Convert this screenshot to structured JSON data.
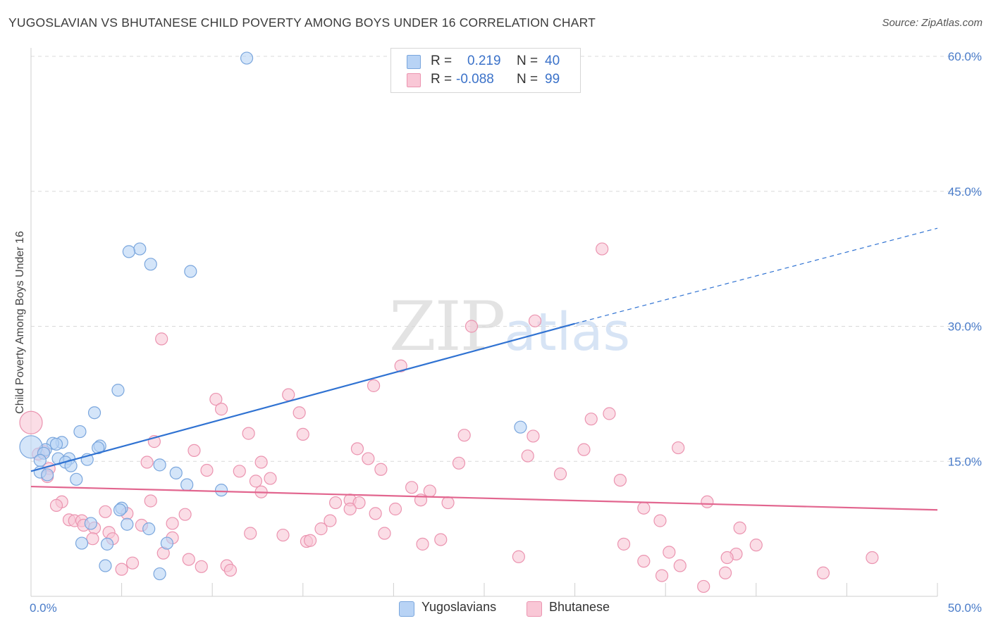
{
  "title": "YUGOSLAVIAN VS BHUTANESE CHILD POVERTY AMONG BOYS UNDER 16 CORRELATION CHART",
  "source": "Source: ZipAtlas.com",
  "watermark": {
    "part1": "ZIP",
    "part2": "atlas"
  },
  "stats": [
    {
      "r_label": "R =",
      "r_value": "0.219",
      "n_label": "N =",
      "n_value": "40",
      "color": "#b8d3f5"
    },
    {
      "r_label": "R =",
      "r_value": "-0.088",
      "n_label": "N =",
      "n_value": "99",
      "color": "#f9c7d6"
    }
  ],
  "legend": [
    {
      "label": "Yugoslavians",
      "color": "#b8d3f5"
    },
    {
      "label": "Bhutanese",
      "color": "#f9c7d6"
    }
  ],
  "colors": {
    "blue_point_fill": "#b8d3f5",
    "blue_point_stroke": "#7aa6dd",
    "blue_line": "#2f72d2",
    "pink_point_fill": "#f9c7d6",
    "pink_point_stroke": "#eb94b0",
    "pink_line": "#e2668f",
    "grid": "#d9d9d9",
    "tick_text": "#4a7cc9"
  },
  "chart_data": {
    "type": "scatter",
    "title": "YUGOSLAVIAN VS BHUTANESE CHILD POVERTY AMONG BOYS UNDER 16 CORRELATION CHART",
    "xlabel": "",
    "ylabel": "Child Poverty Among Boys Under 16",
    "xlim": [
      0,
      50
    ],
    "ylim": [
      0,
      60
    ],
    "x_tick_labels": [
      "0.0%",
      "50.0%"
    ],
    "y_ticks": [
      15,
      30,
      45,
      60
    ],
    "y_tick_labels": [
      "15.0%",
      "30.0%",
      "45.0%",
      "60.0%"
    ],
    "grid": true,
    "legend_position": "bottom-center",
    "series": [
      {
        "name": "Yugoslavians",
        "R": 0.219,
        "N": 40,
        "trend": {
          "x0": 0,
          "y0": 13.9,
          "x1": 30,
          "y1": 30.3,
          "dashed_to_x": 50,
          "dashed_to_y": 40.9
        },
        "points": [
          [
            11.9,
            59.8
          ],
          [
            6.0,
            38.6
          ],
          [
            5.4,
            38.3
          ],
          [
            6.6,
            36.9
          ],
          [
            8.8,
            36.1
          ],
          [
            4.8,
            22.9
          ],
          [
            3.5,
            20.4
          ],
          [
            27.0,
            18.8
          ],
          [
            2.7,
            18.3
          ],
          [
            1.7,
            17.1
          ],
          [
            1.2,
            17.0
          ],
          [
            1.4,
            16.9
          ],
          [
            3.8,
            16.7
          ],
          [
            3.7,
            16.5
          ],
          [
            0.8,
            16.3
          ],
          [
            0.0,
            16.6
          ],
          [
            0.7,
            15.9
          ],
          [
            1.5,
            15.3
          ],
          [
            2.1,
            15.3
          ],
          [
            3.1,
            15.2
          ],
          [
            0.5,
            15.1
          ],
          [
            1.9,
            14.9
          ],
          [
            2.2,
            14.5
          ],
          [
            7.1,
            14.6
          ],
          [
            0.5,
            13.8
          ],
          [
            0.9,
            13.5
          ],
          [
            8.0,
            13.7
          ],
          [
            2.5,
            13.0
          ],
          [
            8.6,
            12.4
          ],
          [
            10.5,
            11.8
          ],
          [
            5.0,
            9.8
          ],
          [
            4.9,
            9.6
          ],
          [
            5.3,
            8.0
          ],
          [
            6.5,
            7.5
          ],
          [
            3.3,
            8.1
          ],
          [
            2.8,
            5.9
          ],
          [
            4.2,
            5.8
          ],
          [
            7.5,
            5.9
          ],
          [
            4.1,
            3.4
          ],
          [
            7.1,
            2.5
          ]
        ]
      },
      {
        "name": "Bhutanese",
        "R": -0.088,
        "N": 99,
        "trend": {
          "x0": 0,
          "y0": 12.2,
          "x1": 50,
          "y1": 9.6
        },
        "points": [
          [
            31.5,
            38.6
          ],
          [
            27.8,
            30.6
          ],
          [
            24.3,
            30.0
          ],
          [
            7.2,
            28.6
          ],
          [
            20.4,
            25.6
          ],
          [
            18.9,
            23.4
          ],
          [
            14.2,
            22.4
          ],
          [
            10.2,
            21.9
          ],
          [
            10.5,
            20.8
          ],
          [
            14.8,
            20.4
          ],
          [
            31.9,
            20.3
          ],
          [
            30.9,
            19.7
          ],
          [
            0.0,
            19.3
          ],
          [
            12.0,
            18.1
          ],
          [
            15.0,
            18.0
          ],
          [
            23.9,
            17.9
          ],
          [
            27.7,
            17.8
          ],
          [
            6.8,
            17.2
          ],
          [
            35.7,
            16.5
          ],
          [
            18.0,
            16.4
          ],
          [
            30.5,
            16.3
          ],
          [
            9.0,
            16.2
          ],
          [
            0.7,
            16.1
          ],
          [
            0.4,
            15.8
          ],
          [
            27.4,
            15.6
          ],
          [
            18.6,
            15.3
          ],
          [
            6.4,
            14.9
          ],
          [
            12.7,
            14.9
          ],
          [
            23.6,
            14.8
          ],
          [
            1.0,
            14.2
          ],
          [
            9.7,
            14.0
          ],
          [
            19.3,
            14.1
          ],
          [
            11.5,
            13.9
          ],
          [
            29.2,
            13.6
          ],
          [
            0.9,
            13.3
          ],
          [
            13.2,
            13.1
          ],
          [
            12.4,
            12.8
          ],
          [
            32.5,
            12.9
          ],
          [
            21.0,
            12.1
          ],
          [
            22.0,
            11.7
          ],
          [
            12.7,
            11.6
          ],
          [
            21.5,
            10.7
          ],
          [
            17.6,
            10.7
          ],
          [
            1.7,
            10.5
          ],
          [
            6.6,
            10.6
          ],
          [
            16.8,
            10.4
          ],
          [
            18.1,
            10.4
          ],
          [
            23.0,
            10.4
          ],
          [
            37.3,
            10.5
          ],
          [
            1.4,
            10.1
          ],
          [
            17.6,
            9.7
          ],
          [
            20.1,
            9.7
          ],
          [
            33.8,
            9.8
          ],
          [
            4.1,
            9.4
          ],
          [
            5.3,
            9.2
          ],
          [
            8.5,
            9.1
          ],
          [
            19.0,
            9.2
          ],
          [
            2.1,
            8.5
          ],
          [
            2.4,
            8.4
          ],
          [
            2.8,
            8.4
          ],
          [
            7.8,
            8.1
          ],
          [
            2.9,
            7.9
          ],
          [
            6.1,
            7.9
          ],
          [
            16.5,
            8.4
          ],
          [
            34.7,
            8.4
          ],
          [
            3.5,
            7.6
          ],
          [
            4.3,
            7.1
          ],
          [
            16.0,
            7.5
          ],
          [
            39.1,
            7.6
          ],
          [
            12.1,
            7.0
          ],
          [
            19.5,
            7.0
          ],
          [
            13.9,
            6.8
          ],
          [
            7.8,
            6.5
          ],
          [
            3.4,
            6.4
          ],
          [
            4.5,
            6.4
          ],
          [
            15.2,
            6.1
          ],
          [
            15.4,
            6.2
          ],
          [
            22.6,
            6.3
          ],
          [
            21.6,
            5.8
          ],
          [
            32.7,
            5.8
          ],
          [
            40.0,
            5.7
          ],
          [
            7.3,
            4.8
          ],
          [
            35.2,
            4.9
          ],
          [
            38.9,
            4.7
          ],
          [
            26.9,
            4.4
          ],
          [
            38.4,
            4.3
          ],
          [
            46.4,
            4.3
          ],
          [
            8.7,
            4.1
          ],
          [
            5.6,
            3.7
          ],
          [
            33.8,
            3.9
          ],
          [
            9.4,
            3.3
          ],
          [
            10.8,
            3.4
          ],
          [
            35.8,
            3.4
          ],
          [
            5.0,
            3.0
          ],
          [
            11.0,
            2.9
          ],
          [
            38.3,
            2.6
          ],
          [
            34.8,
            2.3
          ],
          [
            43.7,
            2.6
          ],
          [
            37.1,
            1.1
          ]
        ]
      }
    ]
  }
}
